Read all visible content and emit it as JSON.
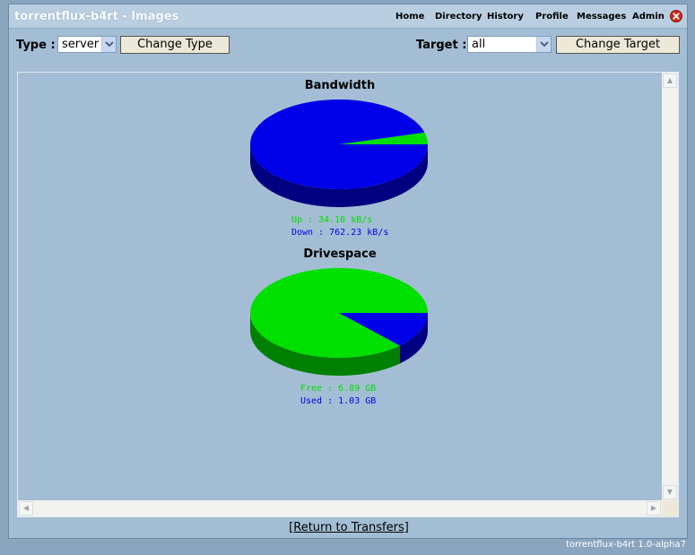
{
  "app": {
    "title": "torrentflux-b4rt - Images",
    "footer": "torrentflux-b4rt 1.0-alpha7"
  },
  "nav": [
    "Home",
    "Directory",
    "History",
    "Profile",
    "Messages",
    "Admin"
  ],
  "type_select": {
    "label": "Type :",
    "value": "server",
    "button": "Change Type"
  },
  "target_select": {
    "label": "Target :",
    "value": "all",
    "button": "Change Target"
  },
  "colors": {
    "green": "#00e000",
    "blue": "#0000e8",
    "green_dark": "#008000",
    "blue_dark": "#000080"
  },
  "chart_data": [
    {
      "type": "pie",
      "title": "Bandwidth",
      "labels": [
        "Up",
        "Down"
      ],
      "values": [
        34.1,
        762.23
      ],
      "units": "kB/s",
      "legend_lines": [
        "Up : 34.10 kB/s",
        "Down : 762.23 kB/s"
      ]
    },
    {
      "type": "pie",
      "title": "Drivespace",
      "labels": [
        "Free",
        "Used"
      ],
      "values": [
        6.89,
        1.03
      ],
      "units": "GB",
      "legend_lines": [
        "Free : 6.89 GB",
        "Used : 1.03 GB"
      ]
    }
  ],
  "links": {
    "return_prefix": "[",
    "return_text": "Return to Transfers",
    "return_suffix": "]"
  }
}
